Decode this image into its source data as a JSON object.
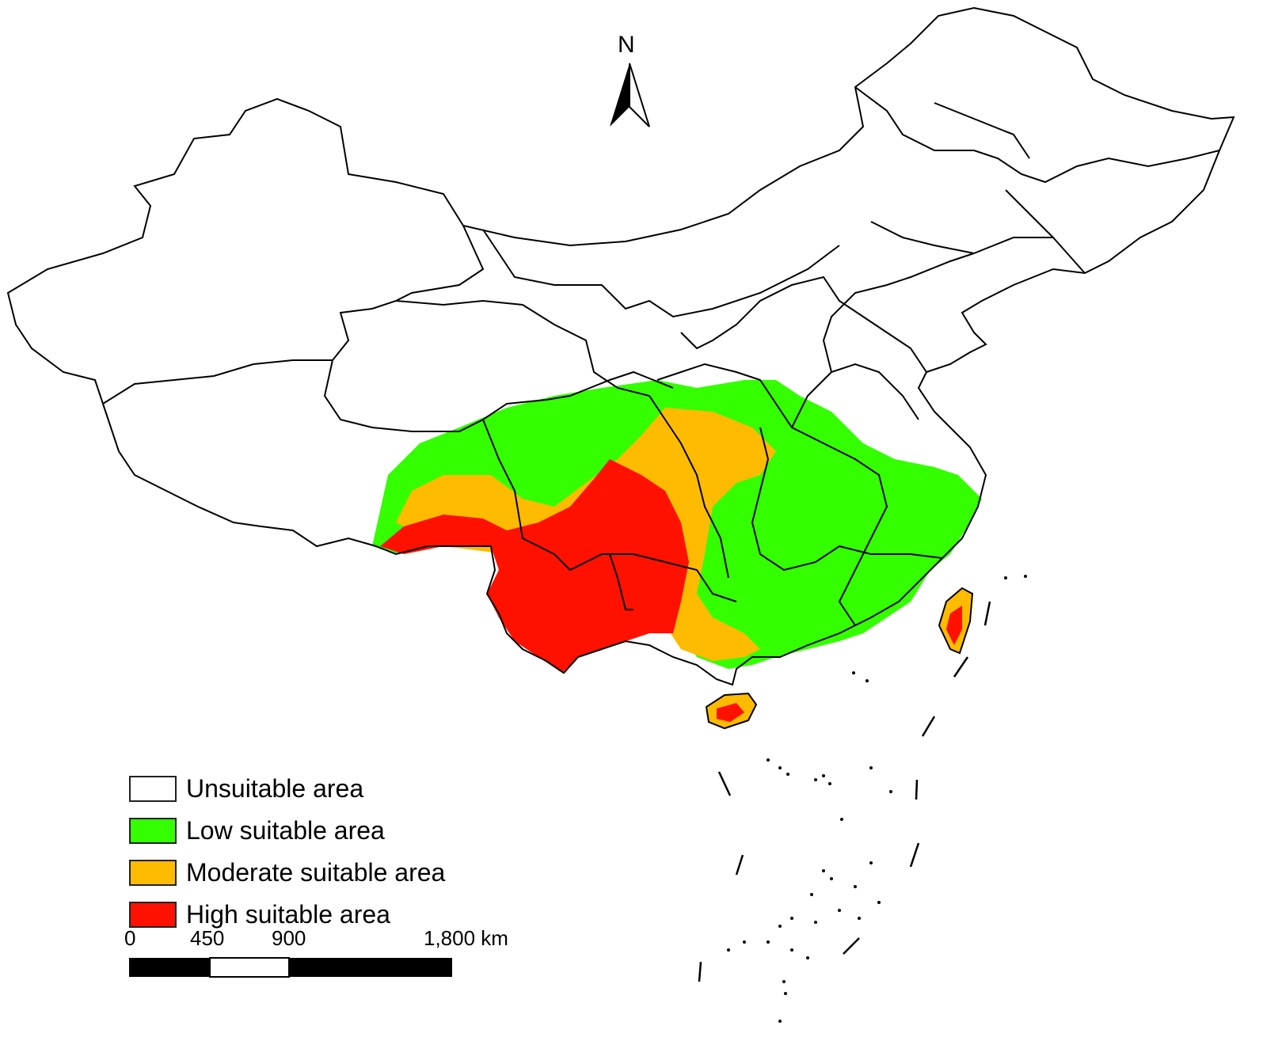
{
  "north": "N",
  "colors": {
    "unsuitable": "#ffffff",
    "low": "#33ff00",
    "moderate": "#ffbb00",
    "high": "#ff1100",
    "border": "#000000"
  },
  "legend": [
    {
      "label": "Unsuitable area",
      "color": "#ffffff"
    },
    {
      "label": "Low suitable area",
      "color": "#33ff00"
    },
    {
      "label": "Moderate suitable area",
      "color": "#ffbb00"
    },
    {
      "label": "High suitable area",
      "color": "#ff1100"
    }
  ],
  "scale": {
    "ticks": [
      "0",
      "450",
      "900",
      "1,800 km"
    ]
  }
}
